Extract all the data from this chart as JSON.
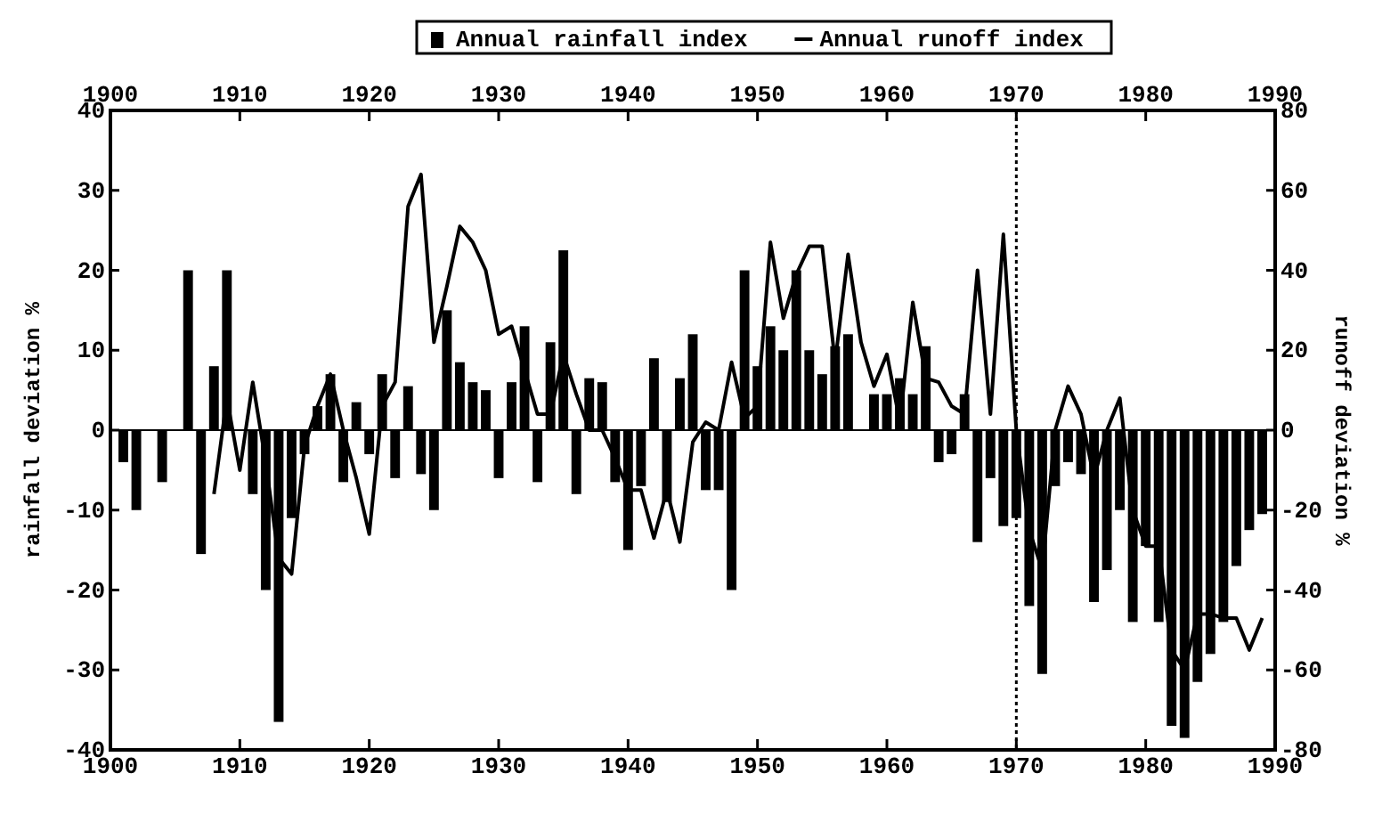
{
  "chart_data": {
    "type": "bar",
    "legend": "top",
    "ylabel": "rainfall deviation %",
    "y2label": "runoff deviation %",
    "xlim": [
      1900,
      1990
    ],
    "xticks": [
      1900,
      1910,
      1920,
      1930,
      1940,
      1950,
      1960,
      1970,
      1980,
      1990
    ],
    "x2lim": [
      1900,
      1990
    ],
    "x2ticks": [
      1900,
      1910,
      1920,
      1930,
      1940,
      1950,
      1960,
      1970,
      1980,
      1990
    ],
    "ylim": [
      -40,
      40
    ],
    "yticks": [
      -40,
      -30,
      -20,
      -10,
      0,
      10,
      20,
      30,
      40
    ],
    "y2lim": [
      -80,
      80
    ],
    "y2ticks": [
      -80,
      -60,
      -40,
      -20,
      0,
      20,
      40,
      60,
      80
    ],
    "ref_lines": [
      {
        "axis": "x",
        "value": 1970,
        "line_style": "dotted",
        "color": "#000000"
      }
    ],
    "series": [
      {
        "name": "Annual rainfall index",
        "color": "#000000",
        "x": [
          1901,
          1902,
          1903,
          1904,
          1905,
          1906,
          1907,
          1908,
          1909,
          1910,
          1911,
          1912,
          1913,
          1914,
          1915,
          1916,
          1917,
          1918,
          1919,
          1920,
          1921,
          1922,
          1923,
          1924,
          1925,
          1926,
          1927,
          1928,
          1929,
          1930,
          1931,
          1932,
          1933,
          1934,
          1935,
          1936,
          1937,
          1938,
          1939,
          1940,
          1941,
          1942,
          1943,
          1944,
          1945,
          1946,
          1947,
          1948,
          1949,
          1950,
          1951,
          1952,
          1953,
          1954,
          1955,
          1956,
          1957,
          1958,
          1959,
          1960,
          1961,
          1962,
          1963,
          1964,
          1965,
          1966,
          1967,
          1968,
          1969,
          1970,
          1971,
          1972,
          1973,
          1974,
          1975,
          1976,
          1977,
          1978,
          1979,
          1980,
          1981,
          1982,
          1983,
          1984,
          1985,
          1986,
          1987,
          1988,
          1989
        ],
        "values": [
          -4,
          -10,
          0,
          -6.5,
          0,
          20,
          -15.5,
          8,
          20,
          0,
          -8,
          -20,
          -36.5,
          -11,
          -3,
          3,
          7,
          -6.5,
          3.5,
          -3,
          7,
          -6,
          5.5,
          -5.5,
          -10,
          15,
          8.5,
          6,
          5,
          -6,
          6,
          13,
          -6.5,
          11,
          22.5,
          -8,
          6.5,
          6,
          -6.5,
          -15,
          -7,
          9,
          -9,
          6.5,
          12,
          -7.5,
          -7.5,
          -20,
          20,
          8,
          13,
          10,
          20,
          10,
          7,
          10.5,
          12,
          0,
          4.5,
          4.5,
          6.5,
          4.5,
          10.5,
          -4,
          -3,
          4.5,
          -14,
          -6,
          -12,
          -11,
          -22,
          -30.5,
          -7,
          -4,
          -5.5,
          -21.5,
          -17.5,
          -10,
          -24,
          -14.5,
          -24,
          -37,
          -38.5,
          -31.5,
          -28,
          -24,
          -17,
          -12.5,
          -10.5
        ]
      },
      {
        "name": "Annual runoff index",
        "type": "line",
        "axis": "y2",
        "color": "#000000",
        "x": [
          1908,
          1909,
          1910,
          1911,
          1912,
          1913,
          1914,
          1915,
          1916,
          1917,
          1918,
          1919,
          1920,
          1921,
          1922,
          1923,
          1924,
          1925,
          1926,
          1927,
          1928,
          1929,
          1930,
          1931,
          1932,
          1933,
          1934,
          1935,
          1936,
          1937,
          1938,
          1939,
          1940,
          1941,
          1942,
          1943,
          1944,
          1945,
          1946,
          1947,
          1948,
          1949,
          1950,
          1951,
          1952,
          1953,
          1954,
          1955,
          1956,
          1957,
          1958,
          1959,
          1960,
          1961,
          1962,
          1963,
          1964,
          1965,
          1966,
          1967,
          1968,
          1969,
          1970,
          1971,
          1972,
          1973,
          1974,
          1975,
          1976,
          1977,
          1978,
          1979,
          1980,
          1981,
          1982,
          1983,
          1984,
          1985,
          1986,
          1987,
          1988,
          1989
        ],
        "values": [
          -16,
          8,
          -10,
          12,
          -8,
          -32,
          -36,
          -4,
          6,
          14,
          0,
          -12,
          -26,
          6,
          12,
          56,
          64,
          22,
          36,
          51,
          47,
          40,
          24,
          26,
          15,
          4,
          4,
          19,
          9,
          0,
          0,
          -7,
          -15,
          -15,
          -27,
          -15,
          -28,
          -3,
          2,
          0,
          17,
          3,
          6,
          47,
          28,
          39,
          46,
          46,
          17,
          44,
          22,
          11,
          19,
          2,
          32,
          13,
          12,
          6,
          4,
          40,
          4,
          49,
          0,
          -25,
          -35,
          0,
          11,
          4,
          -12,
          0,
          8,
          -20,
          -29,
          -29,
          -55,
          -60,
          -46,
          -46,
          -47,
          -47,
          -55,
          -47
        ]
      }
    ]
  }
}
